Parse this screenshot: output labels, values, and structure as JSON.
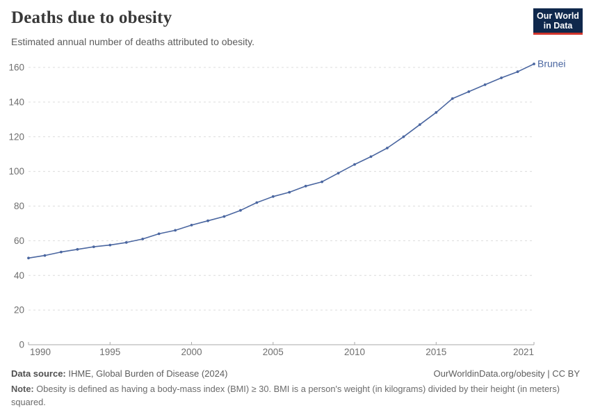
{
  "header": {
    "title": "Deaths due to obesity",
    "subtitle": "Estimated annual number of deaths attributed to obesity.",
    "logo": {
      "line1": "Our World",
      "line2": "in Data",
      "bg_color": "#0f284c",
      "accent_color": "#d0342c"
    }
  },
  "chart_data": {
    "type": "line",
    "title": "Deaths due to obesity",
    "xlabel": "",
    "ylabel": "",
    "x": [
      1990,
      1991,
      1992,
      1993,
      1994,
      1995,
      1996,
      1997,
      1998,
      1999,
      2000,
      2001,
      2002,
      2003,
      2004,
      2005,
      2006,
      2007,
      2008,
      2009,
      2010,
      2011,
      2012,
      2013,
      2014,
      2015,
      2016,
      2017,
      2018,
      2019,
      2020,
      2021
    ],
    "series": [
      {
        "name": "Brunei",
        "values": [
          50,
          51.5,
          53.5,
          55,
          56.5,
          57.5,
          59,
          61,
          64,
          66,
          69,
          71.5,
          74,
          77.5,
          82,
          85.5,
          88,
          91.5,
          94,
          99,
          104,
          108.5,
          113.5,
          120,
          127,
          134,
          142,
          146,
          150,
          154,
          157.5,
          162
        ]
      }
    ],
    "ylim": [
      0,
      160
    ],
    "yticks": [
      0,
      20,
      40,
      60,
      80,
      100,
      120,
      140,
      160
    ],
    "xticks": [
      1990,
      1995,
      2000,
      2005,
      2010,
      2015,
      2021
    ],
    "grid": "horizontal-dashed",
    "legend_position": "end-of-line-label",
    "line_color": "#4a66a0",
    "label_color": "#4a66a0",
    "axis_color": "#a8a8a8",
    "grid_color": "#dcdcdc",
    "tick_label_color": "#6e6e6e"
  },
  "footer": {
    "data_source_label": "Data source:",
    "data_source_value": "IHME, Global Burden of Disease (2024)",
    "link": "OurWorldinData.org/obesity | CC BY",
    "note_label": "Note:",
    "note_text": "Obesity is defined as having a body-mass index (BMI) ≥ 30. BMI is a person's weight (in kilograms) divided by their height (in meters) squared."
  }
}
